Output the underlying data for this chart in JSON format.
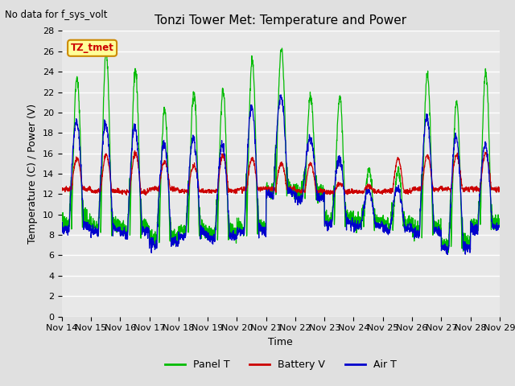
{
  "title": "Tonzi Tower Met: Temperature and Power",
  "top_left_text": "No data for f_sys_volt",
  "xlabel": "Time",
  "ylabel": "Temperature (C) / Power (V)",
  "ylim": [
    0,
    28
  ],
  "yticks": [
    0,
    2,
    4,
    6,
    8,
    10,
    12,
    14,
    16,
    18,
    20,
    22,
    24,
    26,
    28
  ],
  "xtick_labels": [
    "Nov 14",
    "Nov 15",
    "Nov 16",
    "Nov 17",
    "Nov 18",
    "Nov 19",
    "Nov 20",
    "Nov 21",
    "Nov 22",
    "Nov 23",
    "Nov 24",
    "Nov 25",
    "Nov 26",
    "Nov 27",
    "Nov 28",
    "Nov 29"
  ],
  "bg_color": "#e0e0e0",
  "plot_bg_color": "#e8e8e8",
  "grid_color": "white",
  "legend_entries": [
    "Panel T",
    "Battery V",
    "Air T"
  ],
  "legend_colors": [
    "#00bb00",
    "#cc0000",
    "#0000cc"
  ],
  "annotation_text": "TZ_tmet",
  "annotation_color": "#cc0000",
  "annotation_bg": "#ffff99",
  "annotation_border": "#cc8800",
  "n_days": 15,
  "seed": 12345,
  "panel_peaks": [
    23.5,
    25.8,
    24.1,
    20.2,
    22.0,
    22.2,
    25.2,
    26.2,
    21.5,
    21.5,
    14.5,
    14.3,
    23.7,
    21.0,
    24.0
  ],
  "panel_peaks2": [
    0,
    0,
    0,
    0,
    0,
    0,
    24.8,
    0,
    0,
    0,
    0,
    0,
    0,
    0,
    0
  ],
  "air_peaks": [
    19.2,
    19.0,
    18.5,
    17.0,
    17.5,
    16.8,
    20.5,
    21.5,
    17.5,
    15.5,
    12.3,
    12.5,
    19.5,
    17.5,
    16.8
  ],
  "air_mins": [
    8.5,
    8.2,
    8.0,
    7.0,
    7.8,
    7.5,
    8.0,
    11.8,
    11.5,
    9.0,
    8.8,
    8.5,
    8.0,
    6.5,
    8.5
  ],
  "battery_peaks": [
    15.5,
    15.8,
    16.0,
    15.2,
    14.8,
    15.8,
    15.5,
    15.0,
    15.0,
    13.0,
    12.8,
    15.5,
    15.8,
    15.8,
    16.0
  ],
  "battery_base": [
    12.5,
    12.3,
    12.2,
    12.5,
    12.3,
    12.3,
    12.5,
    12.5,
    12.3,
    12.2,
    12.2,
    12.3,
    12.5,
    12.5,
    12.5
  ]
}
